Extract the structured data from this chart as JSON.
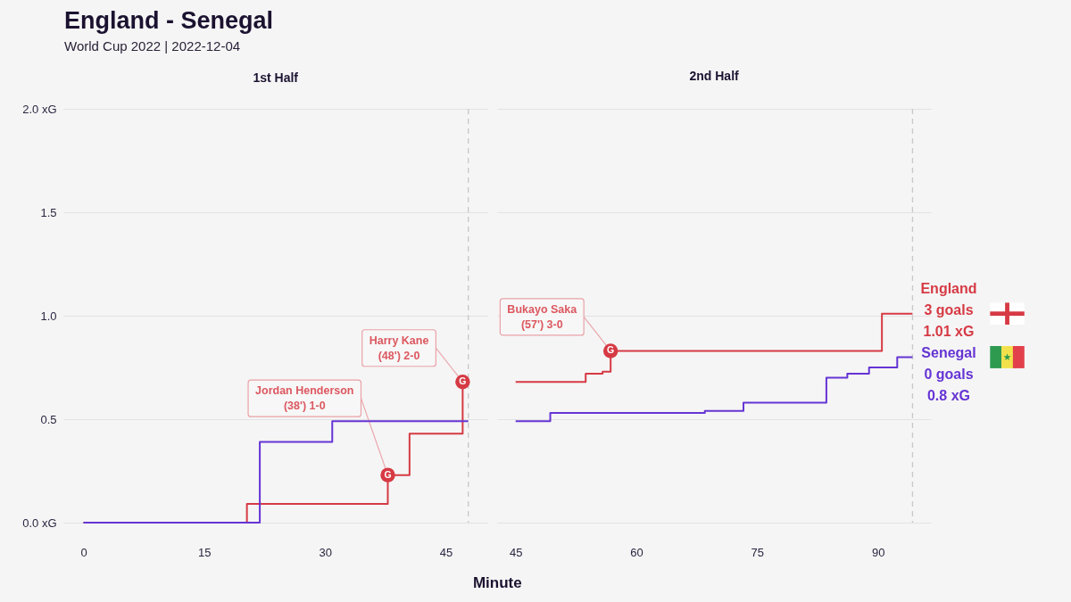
{
  "chart_data": [
    {
      "type": "step",
      "title": "1st Half",
      "xlabel": "Minute",
      "xlim": [
        -2.5,
        50.2
      ],
      "xticks": [
        0,
        15,
        30,
        45
      ],
      "ylim": [
        0,
        2
      ],
      "yticks": [
        {
          "value": 0,
          "label": "0.0 xG"
        },
        0.5,
        {
          "value": 1,
          "label": "1.0"
        },
        1.5,
        {
          "value": 2,
          "label": "2.0 xG"
        }
      ],
      "grid": "y",
      "series": [
        {
          "color": "#d63a44",
          "x": [
            0,
            20.3,
            37.8,
            40.5,
            47.1
          ],
          "values": [
            0,
            0.09,
            0.23,
            0.43,
            0.68
          ]
        },
        {
          "color": "#6534d4",
          "x": [
            0,
            21.9,
            30.9,
            47.8
          ],
          "values": [
            0,
            0.39,
            0.49,
            0.49
          ]
        },
        {
          "type": "scatter",
          "color": "#d63a44",
          "x": [
            37.8,
            47.1
          ],
          "values": [
            0.23,
            0.68
          ],
          "value_labels": [
            "G",
            "G"
          ]
        }
      ],
      "ref_lines": [
        {
          "axis": "x",
          "value": 47.8,
          "color": "#c8c8c8",
          "line_style": "dashed"
        }
      ],
      "annotations": [
        "England - Senegal",
        "World Cup 2022 | 2022-12-04",
        {
          "text": "Jordan Henderson\n(38') 1-0",
          "x": 37.8,
          "y": 0.23
        },
        {
          "text": "Harry Kane\n(48') 2-0",
          "x": 47.1,
          "y": 0.68
        }
      ]
    },
    {
      "type": "step",
      "title": "2nd Half",
      "xlim": [
        42.7,
        96.6
      ],
      "xticks": [
        45,
        60,
        75,
        90
      ],
      "ylim": [
        0,
        2
      ],
      "yticks": [
        0,
        0.5,
        1,
        1.5,
        2
      ],
      "grid": "y",
      "tick_labels": "x",
      "series": [
        {
          "name": "England",
          "color": "#d63a44",
          "x": [
            45,
            53.7,
            55.8,
            56.8,
            90.5,
            94.3
          ],
          "values": [
            0.68,
            0.72,
            0.73,
            0.83,
            1.01,
            1.01
          ],
          "value_labels": [
            null,
            null,
            null,
            null,
            null,
            "3 goals\n1.01 xG"
          ]
        },
        {
          "name": "Senegal",
          "color": "#6534d4",
          "x": [
            45,
            49.3,
            68.5,
            73.3,
            83.6,
            86.2,
            88.9,
            92.4,
            94.3
          ],
          "values": [
            0.49,
            0.53,
            0.54,
            0.58,
            0.7,
            0.72,
            0.75,
            0.8,
            0.8
          ],
          "value_labels": [
            null,
            null,
            null,
            null,
            null,
            null,
            null,
            null,
            "0 goals\n0.8 xG"
          ]
        },
        {
          "type": "scatter",
          "color": "#d63a44",
          "x": [
            56.8
          ],
          "values": [
            0.83
          ],
          "value_labels": [
            "G"
          ]
        }
      ],
      "ref_lines": [
        {
          "axis": "x",
          "value": 94.3,
          "color": "#c8c8c8",
          "line_style": "dashed"
        }
      ],
      "annotations": [
        {
          "text": "Bukayo Saka\n(57') 3-0",
          "x": 56.8,
          "y": 0.83
        }
      ]
    }
  ]
}
